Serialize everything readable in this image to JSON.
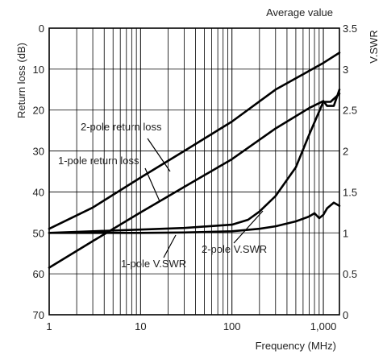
{
  "chart_data": {
    "type": "line",
    "title": "Average value",
    "xlabel": "Frequency (MHz)",
    "ylabel_left": "Return loss (dB)",
    "ylabel_right": "V.SWR",
    "x_scale": "log",
    "xlim": [
      1,
      1500
    ],
    "ylim_left": [
      0,
      70
    ],
    "ylim_right": [
      0,
      3.5
    ],
    "left_axis_inverted": true,
    "grid": true,
    "x_ticks": [
      1,
      10,
      100,
      1000
    ],
    "x_tick_labels": [
      "1",
      "10",
      "100",
      "1,000"
    ],
    "y_left_ticks": [
      0,
      10,
      20,
      30,
      40,
      50,
      60,
      70
    ],
    "y_left_tick_labels": [
      "0",
      "10",
      "20",
      "30",
      "40",
      "50",
      "60",
      "70"
    ],
    "y_right_ticks": [
      0,
      0.5,
      1,
      1.5,
      2,
      2.5,
      3,
      3.5
    ],
    "y_right_tick_labels": [
      "0",
      "0.5",
      "1",
      "1.5",
      "2",
      "2.5",
      "3",
      "3.5"
    ],
    "series": [
      {
        "name": "2-pole return loss",
        "axis": "left",
        "x": [
          1,
          3,
          10,
          30,
          100,
          300,
          1000,
          1500
        ],
        "values": [
          49,
          43.8,
          36.5,
          30,
          22.8,
          15,
          8.5,
          6
        ]
      },
      {
        "name": "1-pole return loss",
        "axis": "left",
        "x": [
          1,
          3,
          10,
          30,
          100,
          300,
          700,
          900,
          1000,
          1100,
          1300,
          1500
        ],
        "values": [
          58.5,
          52,
          45,
          38.8,
          32,
          24.5,
          19.5,
          18.3,
          17.8,
          19,
          19,
          15
        ]
      },
      {
        "name": "2-pole V.SWR",
        "axis": "right",
        "x": [
          1,
          3,
          10,
          30,
          100,
          150,
          200,
          300,
          500,
          700,
          1000,
          1200,
          1500
        ],
        "values": [
          1.0,
          1.02,
          1.04,
          1.06,
          1.1,
          1.16,
          1.26,
          1.45,
          1.8,
          2.2,
          2.6,
          2.6,
          2.7
        ]
      },
      {
        "name": "1-pole V.SWR",
        "axis": "right",
        "x": [
          1,
          3,
          10,
          30,
          100,
          200,
          300,
          500,
          700,
          800,
          900,
          1000,
          1100,
          1300,
          1500
        ],
        "values": [
          1.0,
          1.0,
          1.0,
          1.005,
          1.02,
          1.05,
          1.08,
          1.14,
          1.2,
          1.24,
          1.18,
          1.22,
          1.3,
          1.37,
          1.33
        ]
      }
    ],
    "annotations": [
      "2-pole return loss",
      "1-pole return loss",
      "2-pole V.SWR",
      "1-pole V.SWR"
    ]
  }
}
